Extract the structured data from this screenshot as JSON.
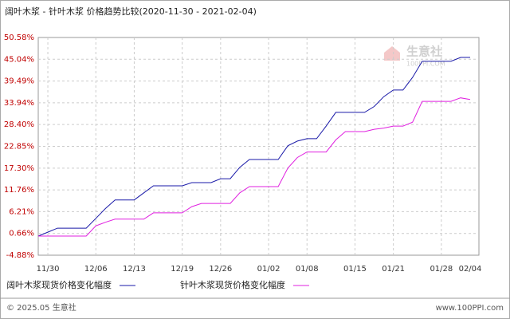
{
  "chart_data": {
    "type": "line",
    "title": "阔叶木浆 - 针叶木浆 价格趋势比较(2020-11-30 - 2021-02-04)",
    "categories": [
      null,
      "11/30",
      null,
      null,
      null,
      null,
      "12/06",
      null,
      null,
      null,
      "12/13",
      null,
      null,
      null,
      null,
      "12/19",
      null,
      null,
      null,
      "12/26",
      null,
      null,
      null,
      null,
      "01/02",
      null,
      null,
      null,
      "01/08",
      null,
      null,
      null,
      null,
      "01/15",
      null,
      null,
      null,
      "01/21",
      null,
      null,
      null,
      null,
      "01/28",
      null,
      null,
      "02/04"
    ],
    "series": [
      {
        "name": "阔叶木浆现货价格变化幅度",
        "color": "#1a1aa8",
        "values": [
          0,
          1,
          2,
          2,
          2,
          2,
          4.5,
          7,
          9.2,
          9.2,
          9.2,
          11,
          12.8,
          12.8,
          12.8,
          12.8,
          13.6,
          13.6,
          13.6,
          14.6,
          14.6,
          17.5,
          19.5,
          19.5,
          19.5,
          19.5,
          23,
          24.2,
          24.8,
          24.8,
          28,
          31.5,
          31.5,
          31.5,
          31.5,
          33,
          35.5,
          37.2,
          37.2,
          40.4,
          44.5,
          44.5,
          44.5,
          44.5,
          45.5,
          45.5
        ]
      },
      {
        "name": "针叶木浆现货价格变化幅度",
        "color": "#e020e0",
        "values": [
          0,
          0,
          0,
          0,
          0,
          0,
          2.6,
          3.5,
          4.3,
          4.3,
          4.3,
          4.3,
          5.9,
          5.9,
          5.9,
          5.9,
          7.5,
          8.3,
          8.3,
          8.3,
          8.3,
          11,
          12.6,
          12.6,
          12.6,
          12.6,
          17.3,
          20,
          21.4,
          21.4,
          21.4,
          24.5,
          26.6,
          26.6,
          26.6,
          27.2,
          27.5,
          28,
          28,
          29,
          34.3,
          34.3,
          34.3,
          34.3,
          35.2,
          34.8
        ]
      }
    ],
    "ylim": [
      -4.88,
      50.58
    ],
    "yticks": [
      {
        "value": 50.58,
        "label": "50.58%"
      },
      {
        "value": 45.04,
        "label": "45.04%"
      },
      {
        "value": 39.49,
        "label": "39.49%"
      },
      {
        "value": 33.94,
        "label": "33.94%"
      },
      {
        "value": 28.4,
        "label": "28.40%"
      },
      {
        "value": 22.85,
        "label": "22.85%"
      },
      {
        "value": 17.3,
        "label": "17.30%"
      },
      {
        "value": 11.76,
        "label": "11.76%"
      },
      {
        "value": 6.21,
        "label": "6.21%"
      },
      {
        "value": 0.66,
        "label": "0.66%"
      },
      {
        "value": -4.88,
        "label": "-4.88%"
      }
    ],
    "grid": true,
    "watermark": {
      "name": "生意社",
      "site": "100PPI.COM"
    },
    "footer": {
      "copyright": "© 2025.05 生意社",
      "site": "www.100PPI.com"
    }
  }
}
